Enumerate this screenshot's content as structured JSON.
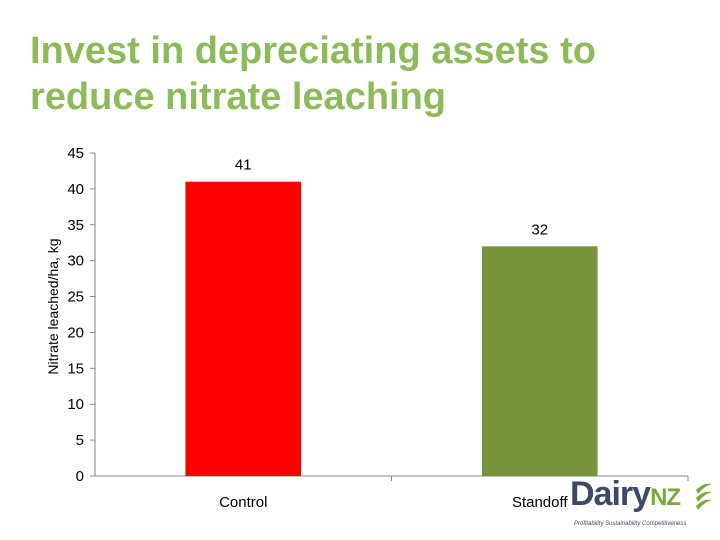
{
  "slide": {
    "title_line1": "Invest in depreciating assets to",
    "title_line2": "reduce nitrate leaching"
  },
  "logo": {
    "word": "Dairy",
    "nz": "NZ",
    "tagline": "Profitability  Sustainability  Competitiveness"
  },
  "chart_data": {
    "type": "bar",
    "title": "",
    "xlabel": "",
    "ylabel": "Nitrate leached/ha, kg",
    "categories": [
      "Control",
      "Standoff"
    ],
    "values": [
      41,
      32
    ],
    "data_labels": [
      "41",
      "32"
    ],
    "colors": [
      "#ff0000",
      "#77933c"
    ],
    "ylim": [
      0,
      45
    ],
    "yticks": [
      0,
      5,
      10,
      15,
      20,
      25,
      30,
      35,
      40,
      45
    ],
    "grid": false,
    "legend": "none"
  }
}
